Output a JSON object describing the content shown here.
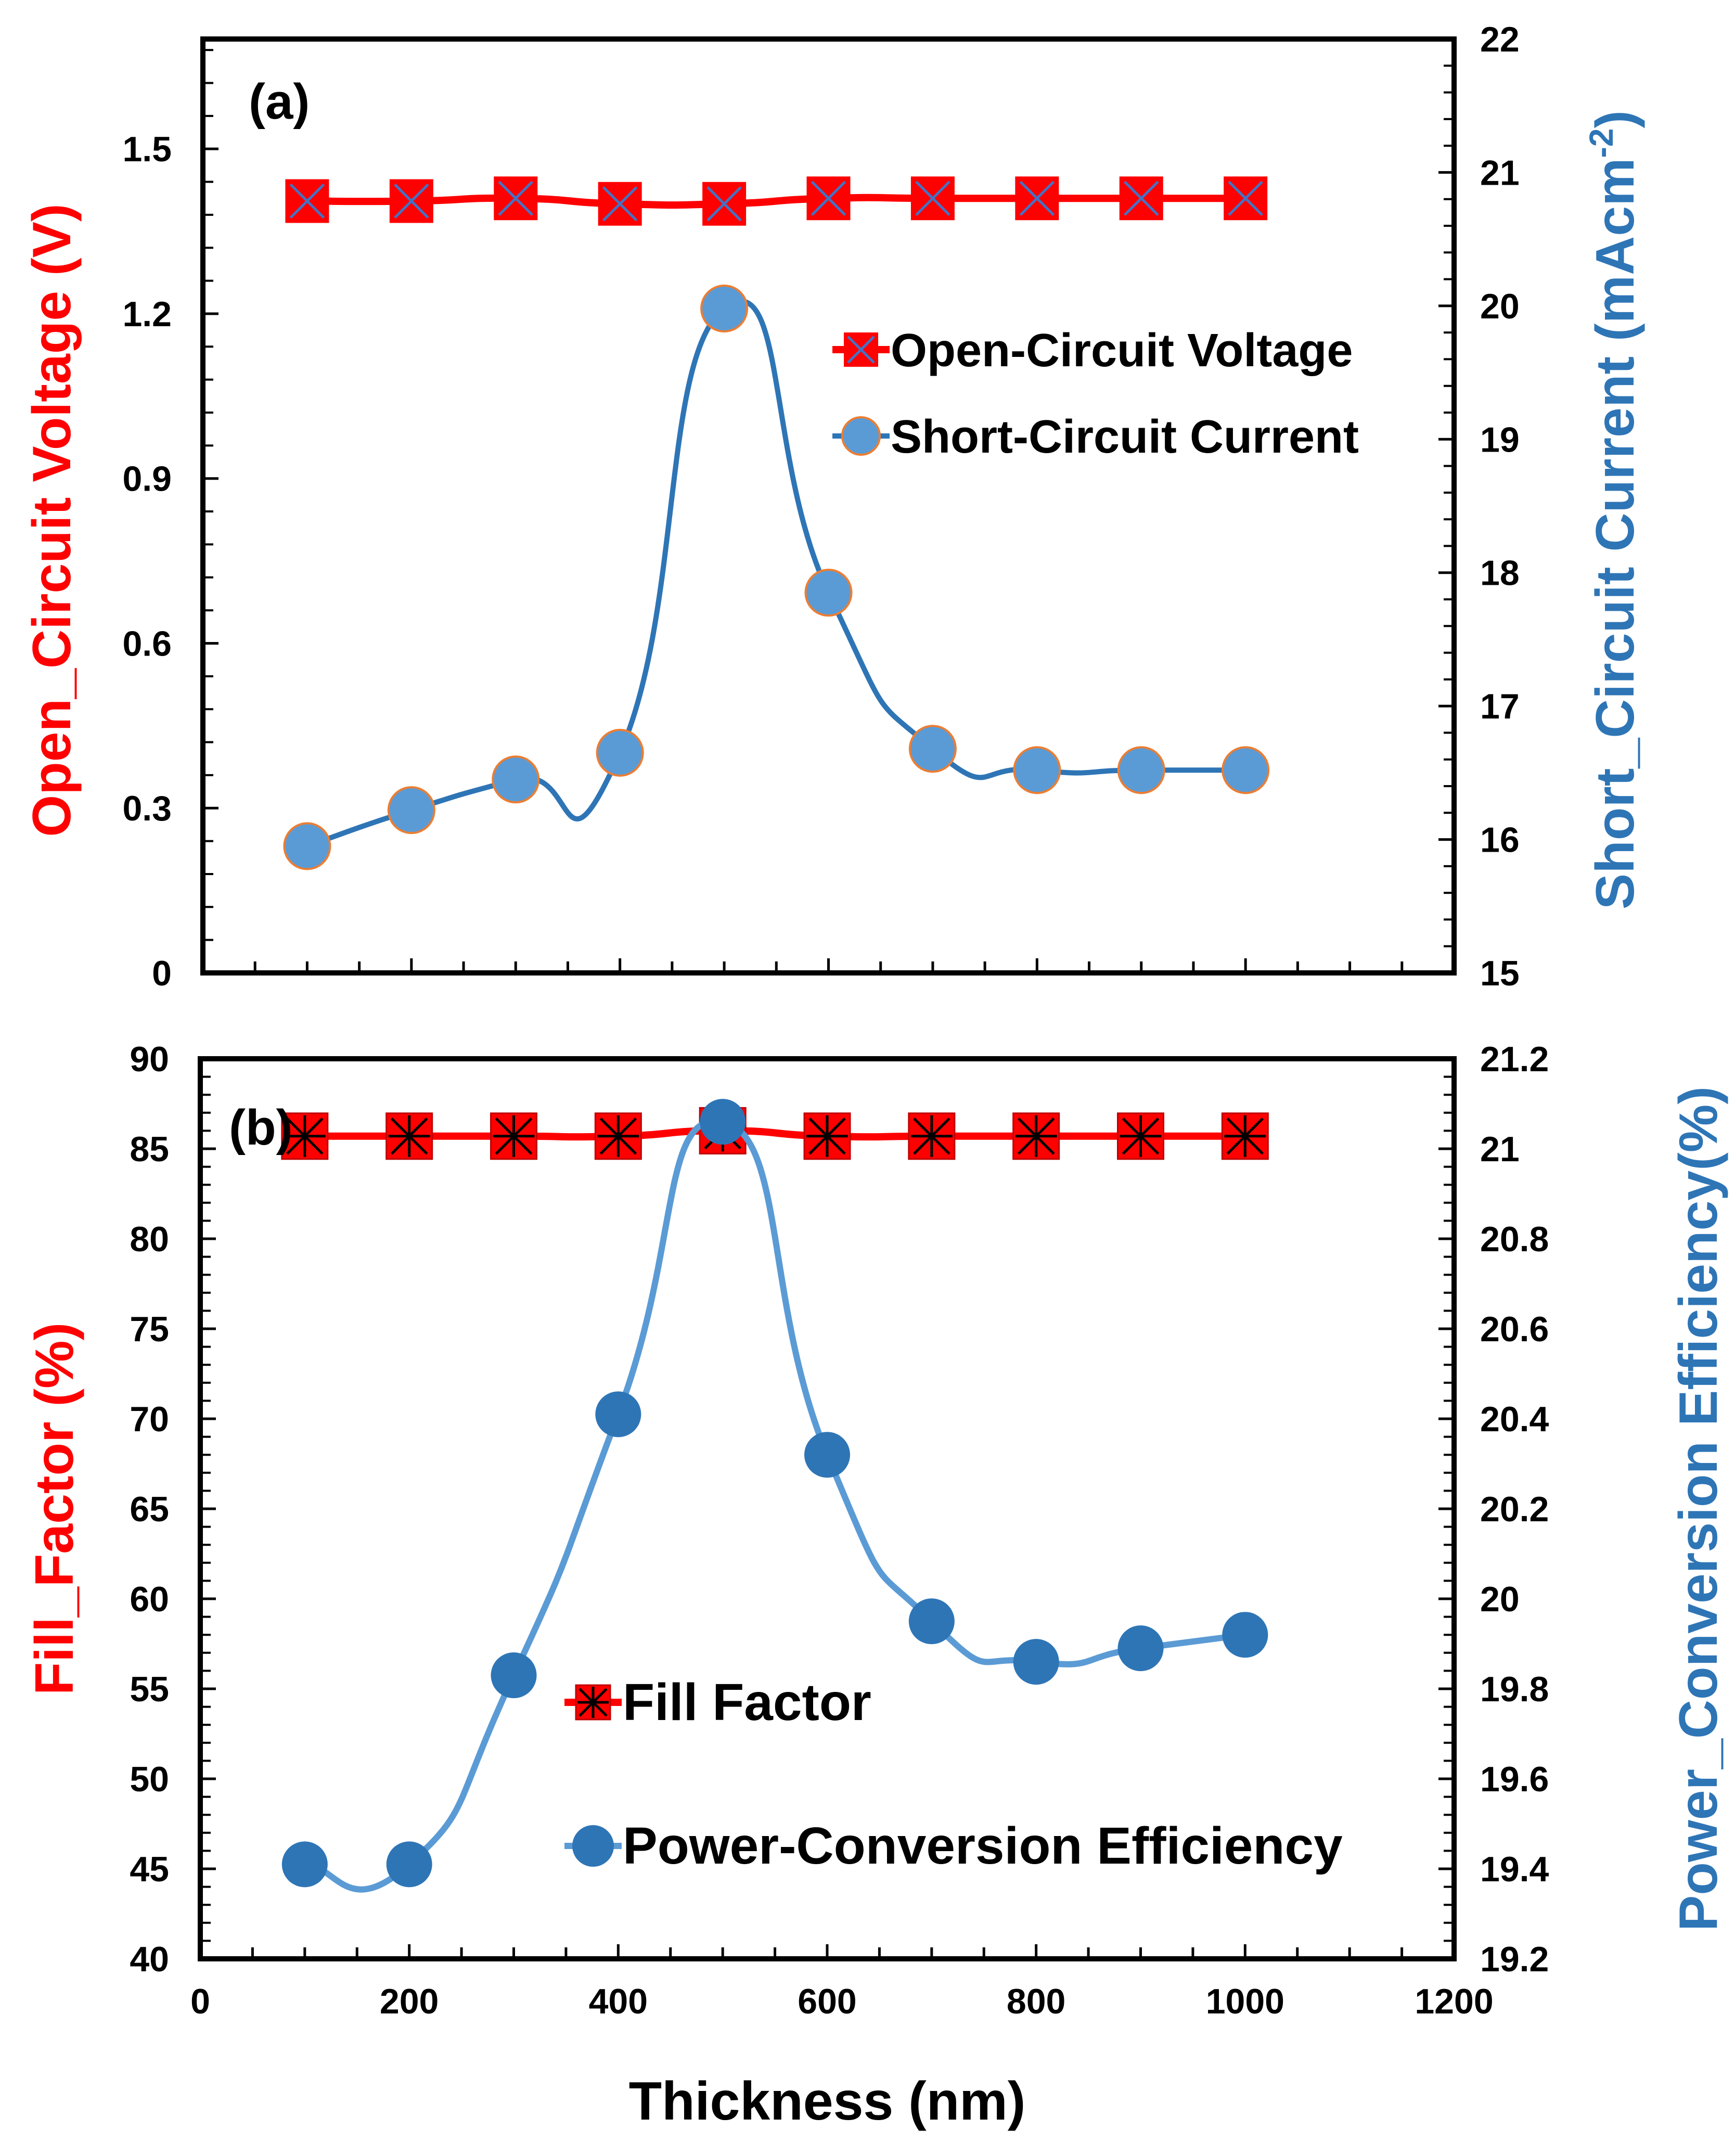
{
  "colors": {
    "red": "#FF0000",
    "blue_a": "#2E75B6",
    "marker_blue_a": "#5B9BD5",
    "marker_blue_a_edge": "#ED7D31",
    "blue_b_line": "#5B9BD5",
    "blue_b_marker": "#2E75B6",
    "axis_title_blue": "#2E75B6",
    "black": "#000000"
  },
  "chart_data": [
    {
      "id": "a",
      "type": "line",
      "panel_label": "(a)",
      "x": [
        100,
        200,
        300,
        400,
        500,
        600,
        700,
        800,
        900,
        1000
      ],
      "xlim": [
        0,
        1200
      ],
      "ylabel_left": "Open_Circuit Voltage (V)",
      "ylim_left": [
        0,
        1.7
      ],
      "yticks_left": [
        0,
        0.3,
        0.6,
        0.9,
        1.2,
        1.5
      ],
      "ytick_labels_left": [
        "0",
        "0.3",
        "0.6",
        "0.9",
        "1.2",
        "1.5"
      ],
      "ylabel_right": "Short_Circuit Current (mAcm",
      "ylabel_right_sup": "-2",
      "ylabel_right_end": ")",
      "ylim_right": [
        15,
        22
      ],
      "yticks_right": [
        15,
        16,
        17,
        18,
        19,
        20,
        21,
        22
      ],
      "ytick_labels_right": [
        "15",
        "16",
        "17",
        "18",
        "19",
        "20",
        "21",
        "22"
      ],
      "legend_position": "middle-right",
      "series": [
        {
          "name": "Open-Circuit Voltage",
          "axis": "left",
          "marker": "square-x",
          "values": [
            1.405,
            1.405,
            1.41,
            1.4,
            1.4,
            1.41,
            1.41,
            1.41,
            1.41,
            1.41
          ]
        },
        {
          "name": "Short-Circuit Current",
          "axis": "right",
          "marker": "circle",
          "values": [
            15.95,
            16.22,
            16.45,
            16.65,
            19.98,
            17.85,
            16.68,
            16.52,
            16.52,
            16.52
          ]
        }
      ]
    },
    {
      "id": "b",
      "type": "line",
      "panel_label": "(b)",
      "x": [
        100,
        200,
        300,
        400,
        500,
        600,
        700,
        800,
        900,
        1000
      ],
      "xlim": [
        0,
        1200
      ],
      "xticks": [
        0,
        200,
        400,
        600,
        800,
        1000,
        1200
      ],
      "xtick_labels": [
        "0",
        "200",
        "400",
        "600",
        "800",
        "1000",
        "1200"
      ],
      "xlabel": "Thickness (nm)",
      "ylabel_left": "Fill_Factor (%)",
      "ylim_left": [
        40,
        90
      ],
      "yticks_left": [
        40,
        45,
        50,
        55,
        60,
        65,
        70,
        75,
        80,
        85,
        90
      ],
      "ytick_labels_left": [
        "40",
        "45",
        "50",
        "55",
        "60",
        "65",
        "70",
        "75",
        "80",
        "85",
        "90"
      ],
      "ylabel_right": "Power_Conversion Efficiency(%)",
      "ylim_right": [
        19.2,
        21.2
      ],
      "yticks_right": [
        19.2,
        19.4,
        19.6,
        19.8,
        20,
        20.2,
        20.4,
        20.6,
        20.8,
        21,
        21.2
      ],
      "ytick_labels_right": [
        "19.2",
        "19.4",
        "19.6",
        "19.8",
        "20",
        "20.2",
        "20.4",
        "20.6",
        "20.8",
        "21",
        "21.2"
      ],
      "legend_position": "bottom-center",
      "series": [
        {
          "name": "Fill Factor",
          "axis": "left",
          "marker": "square-star",
          "values": [
            85.7,
            85.7,
            85.7,
            85.7,
            86.0,
            85.7,
            85.7,
            85.7,
            85.7,
            85.7
          ]
        },
        {
          "name": "Power-Conversion Efficiency",
          "axis": "right",
          "marker": "circle",
          "values": [
            19.41,
            19.41,
            19.83,
            20.41,
            21.06,
            20.32,
            19.95,
            19.86,
            19.89,
            19.92
          ]
        }
      ]
    }
  ]
}
